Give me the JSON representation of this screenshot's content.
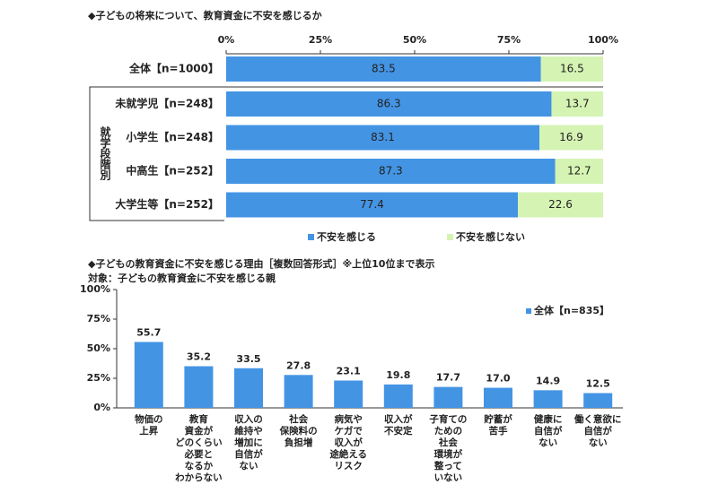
{
  "chart_data": [
    {
      "type": "stacked_bar_h",
      "title": "◆子どもの将来について、教育資金に不安を感じるか",
      "categories": [
        "全体【n=1000】",
        "未就学児【n=248】",
        "小学生【n=248】",
        "中高生【n=252】",
        "大学生等【n=252】"
      ],
      "group_label": "就学段階別",
      "series": [
        {
          "name": "不安を感じる",
          "color": "#4494e4",
          "values": [
            83.5,
            86.3,
            83.1,
            87.3,
            77.4
          ]
        },
        {
          "name": "不安を感じない",
          "color": "#d5f3b3",
          "values": [
            16.5,
            13.7,
            16.9,
            12.7,
            22.6
          ]
        }
      ],
      "xlim": [
        0,
        100
      ],
      "xticks": [
        {
          "value": 0,
          "label": "0%"
        },
        {
          "value": 25,
          "label": "25%"
        },
        {
          "value": 50,
          "label": "50%"
        },
        {
          "value": 75,
          "label": "75%"
        },
        {
          "value": 100,
          "label": "100%"
        }
      ],
      "legend": "bottom"
    },
    {
      "type": "bar",
      "title": "◆子どもの教育資金に不安を感じる理由［複数回答形式］※上位10位まで表示",
      "subtitle": "対象：子どもの教育資金に不安を感じる親",
      "categories": [
        [
          "物価の",
          "上昇"
        ],
        [
          "教育",
          "資金が",
          "どのくらい",
          "必要と",
          "なるか",
          "わからない"
        ],
        [
          "収入の",
          "維持や",
          "増加に",
          "自信が",
          "ない"
        ],
        [
          "社会",
          "保険料の",
          "負担増"
        ],
        [
          "病気や",
          "ケガで",
          "収入が",
          "途絶える",
          "リスク"
        ],
        [
          "収入が",
          "不安定"
        ],
        [
          "子育ての",
          "ための",
          "社会",
          "環境が",
          "整って",
          "いない"
        ],
        [
          "貯蓄が",
          "苦手"
        ],
        [
          "健康に",
          "自信が",
          "ない"
        ],
        [
          "働く意欲に",
          "自信が",
          "ない"
        ]
      ],
      "series": [
        {
          "name": "全体【n=835】",
          "color": "#4494e4",
          "values": [
            55.7,
            35.2,
            33.5,
            27.8,
            23.1,
            19.8,
            17.7,
            17.0,
            14.9,
            12.5
          ],
          "value_labels": [
            "55.7",
            "35.2",
            "33.5",
            "27.8",
            "23.1",
            "19.8",
            "17.7",
            "17.0",
            "14.9",
            "12.5"
          ]
        }
      ],
      "ylim": [
        0,
        100
      ],
      "yticks": [
        {
          "value": 0,
          "label": "0%"
        },
        {
          "value": 25,
          "label": "25%"
        },
        {
          "value": 50,
          "label": "50%"
        },
        {
          "value": 75,
          "label": "75%"
        },
        {
          "value": 100,
          "label": "100%"
        }
      ],
      "legend": "top-right"
    }
  ]
}
